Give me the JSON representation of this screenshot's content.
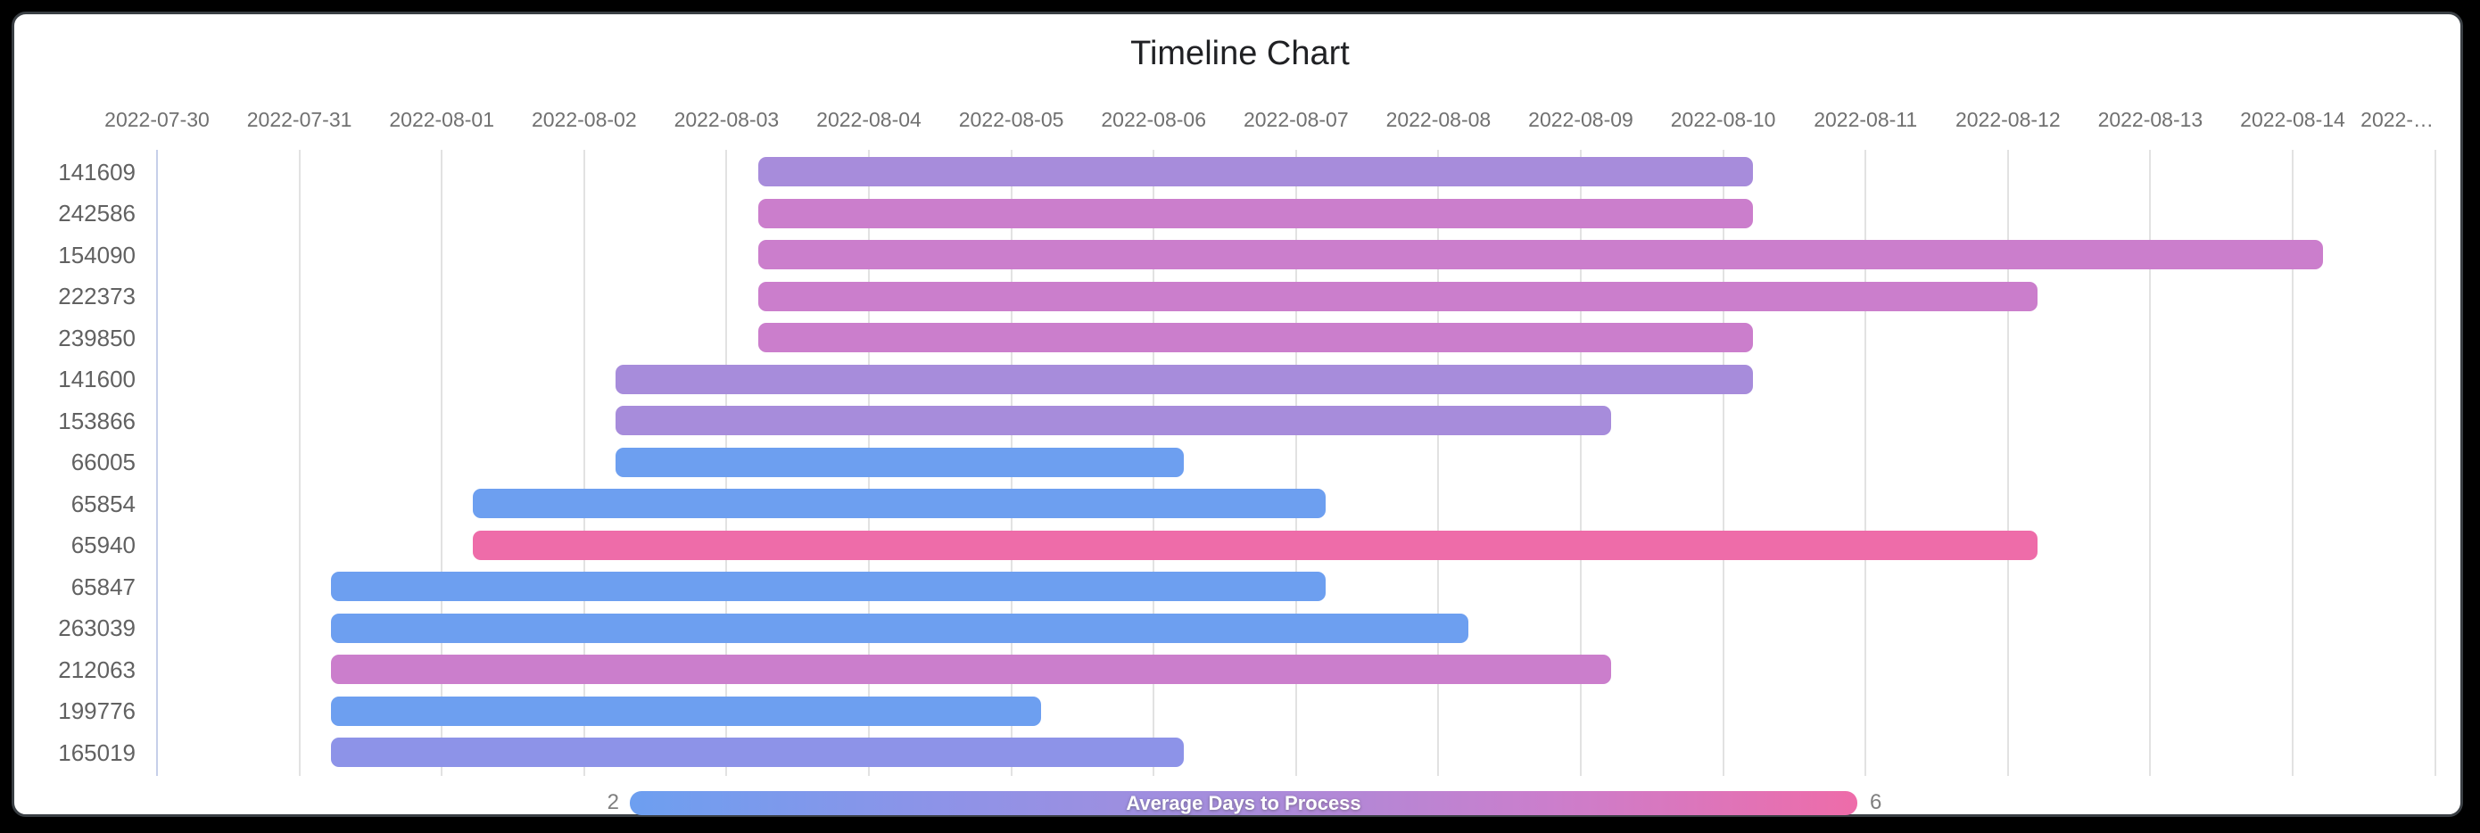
{
  "title": "Timeline Chart",
  "ui_colors": {
    "background": "#000000",
    "card": "#ffffff",
    "card_border": "#3a3f44",
    "gridline": "#e2e2e2",
    "first_gridline": "#c6cfe9",
    "title_text": "#202124",
    "axis_label_text": "#707070",
    "row_label_text": "#616161"
  },
  "chart_data": {
    "type": "bar",
    "subtype": "timeline-gantt",
    "title": "Timeline Chart",
    "grid": "on",
    "x_axis": {
      "position": "top",
      "start_date": "2022-07-30",
      "tick_dates": [
        "2022-07-30",
        "2022-07-31",
        "2022-08-01",
        "2022-08-02",
        "2022-08-03",
        "2022-08-04",
        "2022-08-05",
        "2022-08-06",
        "2022-08-07",
        "2022-08-08",
        "2022-08-09",
        "2022-08-10",
        "2022-08-11",
        "2022-08-12",
        "2022-08-13",
        "2022-08-14"
      ],
      "overflow_tick_label": "2022-…"
    },
    "colorbar": {
      "label": "Average Days to Process",
      "min": 2,
      "max": 6,
      "min_label": "2",
      "max_label": "6",
      "position": "bottom",
      "gradient": [
        "#6d9ff0",
        "#8d93e8",
        "#a78cdb",
        "#cb7ecc",
        "#ee6ca9"
      ]
    },
    "tasks": [
      {
        "id": "141609",
        "start": "2022-08-03",
        "end": "2022-08-10",
        "duration_days": 7,
        "avg_days_to_process": 4,
        "color": "#a78cdb"
      },
      {
        "id": "242586",
        "start": "2022-08-03",
        "end": "2022-08-10",
        "duration_days": 7,
        "avg_days_to_process": 5,
        "color": "#cb7ecc"
      },
      {
        "id": "154090",
        "start": "2022-08-03",
        "end": "2022-08-14",
        "duration_days": 11,
        "avg_days_to_process": 5,
        "color": "#cb7ecc"
      },
      {
        "id": "222373",
        "start": "2022-08-03",
        "end": "2022-08-12",
        "duration_days": 9,
        "avg_days_to_process": 5,
        "color": "#cb7ecc"
      },
      {
        "id": "239850",
        "start": "2022-08-03",
        "end": "2022-08-10",
        "duration_days": 7,
        "avg_days_to_process": 5,
        "color": "#cb7ecc"
      },
      {
        "id": "141600",
        "start": "2022-08-02",
        "end": "2022-08-10",
        "duration_days": 8,
        "avg_days_to_process": 4,
        "color": "#a78cdb"
      },
      {
        "id": "153866",
        "start": "2022-08-02",
        "end": "2022-08-09",
        "duration_days": 7,
        "avg_days_to_process": 4,
        "color": "#a78cdb"
      },
      {
        "id": "66005",
        "start": "2022-08-02",
        "end": "2022-08-06",
        "duration_days": 4,
        "avg_days_to_process": 2,
        "color": "#6d9ff0"
      },
      {
        "id": "65854",
        "start": "2022-08-01",
        "end": "2022-08-07",
        "duration_days": 6,
        "avg_days_to_process": 2,
        "color": "#6d9ff0"
      },
      {
        "id": "65940",
        "start": "2022-08-01",
        "end": "2022-08-12",
        "duration_days": 11,
        "avg_days_to_process": 6,
        "color": "#ee6ca9"
      },
      {
        "id": "65847",
        "start": "2022-07-31",
        "end": "2022-08-07",
        "duration_days": 7,
        "avg_days_to_process": 2,
        "color": "#6d9ff0"
      },
      {
        "id": "263039",
        "start": "2022-07-31",
        "end": "2022-08-08",
        "duration_days": 8,
        "avg_days_to_process": 2,
        "color": "#6d9ff0"
      },
      {
        "id": "212063",
        "start": "2022-07-31",
        "end": "2022-08-09",
        "duration_days": 9,
        "avg_days_to_process": 5,
        "color": "#cb7ecc"
      },
      {
        "id": "199776",
        "start": "2022-07-31",
        "end": "2022-08-05",
        "duration_days": 5,
        "avg_days_to_process": 2,
        "color": "#6d9ff0"
      },
      {
        "id": "165019",
        "start": "2022-07-31",
        "end": "2022-08-06",
        "duration_days": 6,
        "avg_days_to_process": 3,
        "color": "#8d93e8"
      }
    ]
  }
}
